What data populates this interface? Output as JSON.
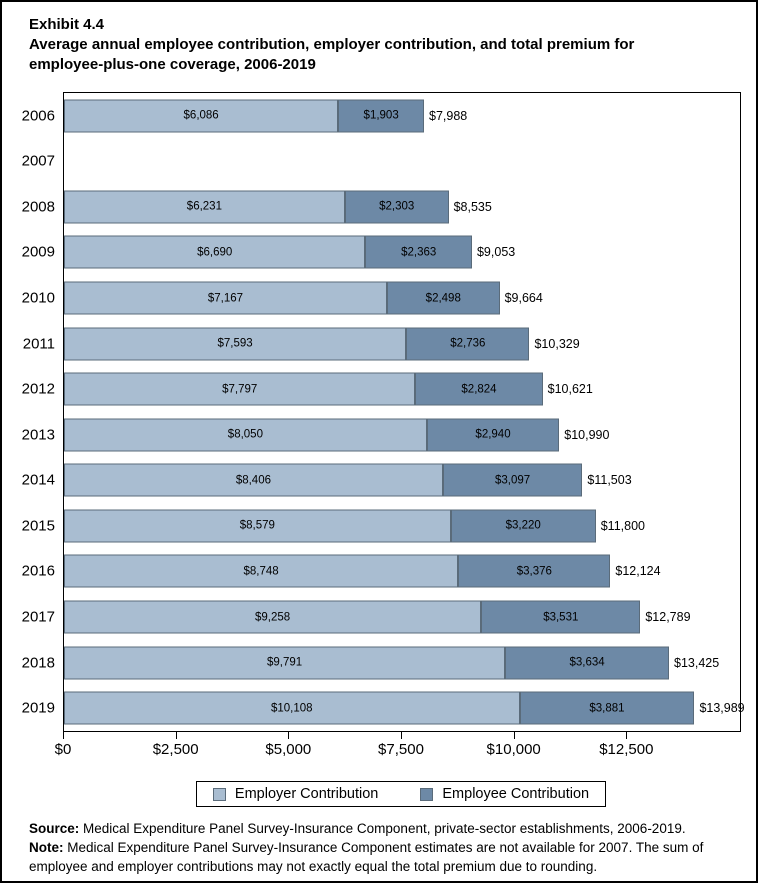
{
  "page": {
    "exhibit_label": "Exhibit 4.4",
    "title": "Average annual employee contribution, employer contribution, and total premium for employee-plus-one coverage, 2006-2019"
  },
  "chart_data": {
    "type": "bar",
    "orientation": "horizontal",
    "stacked": true,
    "title": "Average annual employee contribution, employer contribution, and total premium for employee-plus-one coverage, 2006-2019",
    "categories": [
      "2006",
      "2007",
      "2008",
      "2009",
      "2010",
      "2011",
      "2012",
      "2013",
      "2014",
      "2015",
      "2016",
      "2017",
      "2018",
      "2019"
    ],
    "series": [
      {
        "name": "Employer Contribution",
        "color": "#a9bdd1",
        "values": [
          6086,
          null,
          6231,
          6690,
          7167,
          7593,
          7797,
          8050,
          8406,
          8579,
          8748,
          9258,
          9791,
          10108
        ]
      },
      {
        "name": "Employee Contribution",
        "color": "#6d89a6",
        "values": [
          1903,
          null,
          2303,
          2363,
          2498,
          2736,
          2824,
          2940,
          3097,
          3220,
          3376,
          3531,
          3634,
          3881
        ]
      }
    ],
    "totals": [
      7988,
      null,
      8535,
      9053,
      9664,
      10329,
      10621,
      10990,
      11503,
      11800,
      12124,
      12789,
      13425,
      13989
    ],
    "xlim": [
      0,
      15000
    ],
    "x_tick_values": [
      0,
      2500,
      5000,
      7500,
      10000,
      12500
    ],
    "x_tick_labels": [
      "$0",
      "$2,500",
      "$5,000",
      "$7,500",
      "$10,000",
      "$12,500"
    ],
    "bar_border_color": "#5a6b7a",
    "grid": false,
    "legend_position": "bottom",
    "missing_years": [
      "2007"
    ]
  },
  "footer": {
    "source_label": "Source:",
    "source_text": " Medical Expenditure Panel Survey-Insurance Component, private-sector establishments, 2006-2019.",
    "note_label": "Note:",
    "note_text": " Medical Expenditure Panel Survey-Insurance Component estimates are not available for 2007. The sum of employee and employer contributions may not exactly equal the total premium due to rounding."
  }
}
